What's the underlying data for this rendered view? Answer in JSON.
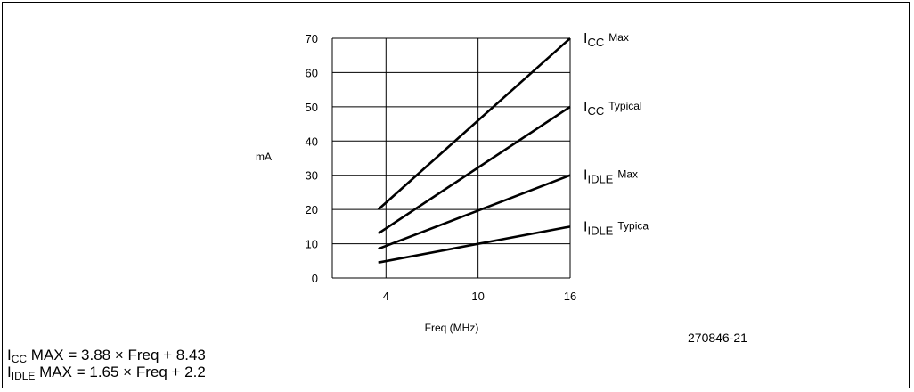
{
  "figure_id": "270846-21",
  "formulas": [
    {
      "var": "I",
      "sub": "CC",
      "rest": " MAX = 3.88 × Freq + 8.43"
    },
    {
      "var": "I",
      "sub": "IDLE",
      "rest": " MAX = 1.65 × Freq + 2.2"
    }
  ],
  "chart_data": {
    "type": "line",
    "title": "",
    "xlabel": "Freq (MHz)",
    "ylabel": "mA",
    "x_ticks": [
      4,
      10,
      16
    ],
    "y_ticks": [
      0,
      10,
      20,
      30,
      40,
      50,
      60,
      70
    ],
    "ylim": [
      0,
      70
    ],
    "grid": true,
    "series": [
      {
        "name_main": "I",
        "name_sub": "CC",
        "name_suffix": "Max",
        "x": [
          3.5,
          16
        ],
        "y": [
          20,
          70
        ]
      },
      {
        "name_main": "I",
        "name_sub": "CC",
        "name_suffix": "Typical",
        "x": [
          3.5,
          16
        ],
        "y": [
          13,
          50
        ]
      },
      {
        "name_main": "I",
        "name_sub": "IDLE",
        "name_suffix": "Max",
        "x": [
          3.5,
          16
        ],
        "y": [
          8.5,
          30
        ]
      },
      {
        "name_main": "I",
        "name_sub": "IDLE",
        "name_suffix": "Typica",
        "x": [
          3.5,
          16
        ],
        "y": [
          4.5,
          15
        ]
      }
    ],
    "colors": {
      "line": "#000000",
      "grid": "#000000",
      "background": "#ffffff"
    }
  }
}
